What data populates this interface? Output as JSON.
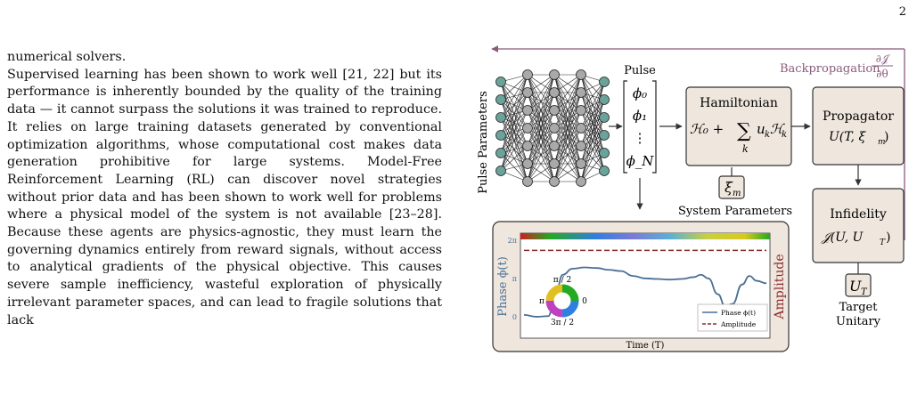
{
  "page_number": "2",
  "body_text": {
    "paragraph_1": "numerical solvers.",
    "paragraph_2": "Supervised learning has been shown to work well [21, 22] but its performance is inherently bounded by the quality of the training data — it cannot surpass the solutions it was trained to reproduce. It relies on large training datasets generated by conventional optimization algorithms, whose computational cost makes data generation prohibitive for large systems. Model-Free Reinforcement Learning (RL) can discover novel strategies without prior data and has been shown to work well for problems where a physical model of the system is not available [23–28]. Because these agents are physics-agnostic, they must learn the governing dynamics entirely from reward signals, without access to analytical gradients of the physical objective. This causes severe sample inefficiency, wasteful exploration of physically irrelevant parameter spaces, and can lead to fragile solutions that lack"
  },
  "figure": {
    "backprop_label": "Backpropagation",
    "backprop_frac_num": "∂𝒥",
    "backprop_frac_den": "∂θ",
    "nn_input_label": "Pulse Parameters",
    "pulse_label": "Pulse",
    "pulse_vector": [
      "ϕ₀",
      "ϕ₁",
      "⋮",
      "ϕ_N"
    ],
    "hamiltonian_title": "Hamiltonian",
    "hamiltonian_expr_a": "ℋ₀ +",
    "hamiltonian_sum": "∑",
    "hamiltonian_sum_index": "k",
    "hamiltonian_expr_b": "u",
    "hamiltonian_expr_b_sub": "k",
    "hamiltonian_expr_c": "ℋ",
    "hamiltonian_expr_c_sub": "k",
    "system_param_symbol": "ξ",
    "system_param_sub": "m",
    "system_param_label": "System Parameters",
    "propagator_title": "Propagator",
    "propagator_expr": "U(T, ξ",
    "propagator_expr_sub": "m",
    "propagator_expr_end": ")",
    "infidelity_title": "Infidelity",
    "infidelity_expr": "𝒥(U, U",
    "infidelity_expr_sub": "T",
    "infidelity_expr_end": ")",
    "target_symbol": "U",
    "target_sub": "T",
    "target_label_1": "Target",
    "target_label_2": "Unitary",
    "colors": {
      "box_fill": "#efe7de",
      "box_stroke": "#333333",
      "backprop": "#8a5b7d",
      "phase_line": "#4a6f96",
      "amplitude": "#8b2b2b",
      "nn_teal": "#6aa39a",
      "nn_gray": "#a9a9a9"
    },
    "inset": {
      "ylabel": "Phase ϕ(t)",
      "ylabel_right": "Amplitude",
      "xlabel": "Time (T)",
      "yticks": [
        "2π",
        "π",
        "0"
      ],
      "wheel_top": "π / 2",
      "wheel_left": "π",
      "wheel_right": "0",
      "wheel_bottom": "3π / 2",
      "legend_phase": "Phase ϕ(t)",
      "legend_amplitude": "Amplitude"
    }
  },
  "chart_data": {
    "type": "line",
    "xlabel": "Time (T)",
    "ylabel": "Phase ϕ(t)",
    "ylim": [
      0,
      6.283
    ],
    "yticks": [
      "0",
      "π",
      "2π"
    ],
    "legend": "bottom-right",
    "series": [
      {
        "name": "Phase ϕ(t)",
        "x": [
          0.0,
          0.05,
          0.1,
          0.13,
          0.16,
          0.2,
          0.25,
          0.3,
          0.35,
          0.4,
          0.45,
          0.5,
          0.55,
          0.6,
          0.65,
          0.7,
          0.73,
          0.76,
          0.8,
          0.83,
          0.86,
          0.9,
          0.93,
          0.96,
          1.0
        ],
        "y": [
          0.3,
          0.15,
          0.2,
          2.0,
          3.6,
          4.1,
          4.2,
          4.15,
          4.0,
          3.9,
          3.5,
          3.3,
          3.25,
          3.2,
          3.25,
          3.4,
          3.6,
          3.3,
          2.0,
          1.0,
          1.2,
          2.8,
          3.5,
          3.1,
          2.9
        ]
      },
      {
        "name": "Amplitude",
        "x": [
          0.0,
          1.0
        ],
        "y": [
          5.6,
          5.6
        ]
      }
    ]
  }
}
